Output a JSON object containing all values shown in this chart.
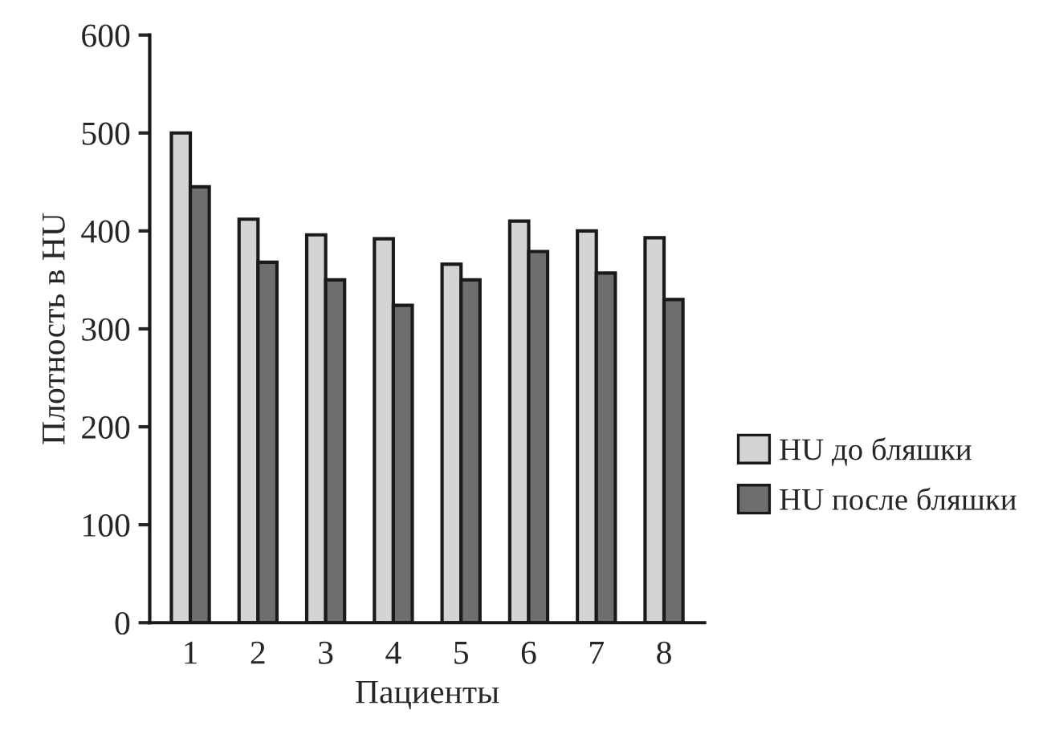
{
  "chart_data": {
    "type": "bar",
    "xlabel": "Пациенты",
    "ylabel": "Плотность в HU",
    "categories": [
      "1",
      "2",
      "3",
      "4",
      "5",
      "6",
      "7",
      "8"
    ],
    "series": [
      {
        "name": "HU до бляшки",
        "color": "#d3d4d6",
        "values": [
          500,
          412,
          396,
          392,
          366,
          410,
          400,
          393
        ]
      },
      {
        "name": "HU после бляшки",
        "color": "#6d6e70",
        "values": [
          445,
          368,
          350,
          324,
          350,
          379,
          357,
          330
        ]
      }
    ],
    "ylim": [
      0,
      600
    ],
    "yticks": [
      0,
      100,
      200,
      300,
      400,
      500,
      600
    ],
    "grid": false,
    "legend": "right"
  }
}
